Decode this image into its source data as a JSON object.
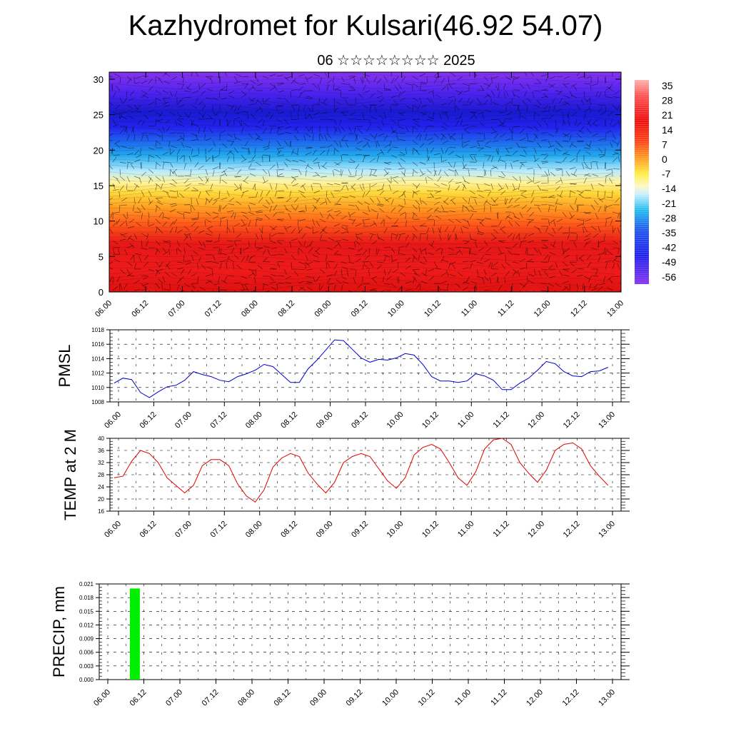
{
  "header": {
    "title": "Kazhydromet for Kulsari(46.92 54.07)",
    "subtitle": "06 ☆☆☆☆☆☆☆☆ 2025"
  },
  "colors": {
    "pmsl_line": "#0000cc",
    "temp_line": "#dd0000",
    "precip_bar": "#00ee00",
    "colorbar_top": "#ffb0b0",
    "colorbar_mid_red": "#ee0000",
    "colorbar_yellow": "#ffee44",
    "colorbar_cyan": "#22bbee",
    "colorbar_bottom": "#8833ee"
  },
  "chart_data": [
    {
      "type": "heatmap",
      "title": "",
      "xlabel": "",
      "ylabel": "",
      "x_tick_labels": [
        "06.00",
        "06.12",
        "07.00",
        "07.12",
        "08.00",
        "08.12",
        "09.00",
        "09.12",
        "10.00",
        "10.12",
        "11.00",
        "11.12",
        "12.00",
        "12.12",
        "13.00"
      ],
      "y_ticks": [
        0,
        5,
        10,
        15,
        20,
        25,
        30
      ],
      "ylim": [
        0,
        31
      ],
      "overlay": "wind barbs / streamlines",
      "colorbar": {
        "labels": [
          "35",
          "28",
          "21",
          "14",
          "7",
          "0",
          "-7",
          "-14",
          "-21",
          "-28",
          "-35",
          "-42",
          "-49",
          "-56"
        ],
        "range": [
          -60,
          38
        ]
      }
    },
    {
      "type": "line",
      "title": "",
      "ylabel": "PMSL",
      "x_tick_labels": [
        "06.00",
        "06.12",
        "07.00",
        "07.12",
        "08.00",
        "08.12",
        "09.00",
        "09.12",
        "10.00",
        "10.12",
        "11.00",
        "11.12",
        "12.00",
        "12.12",
        "13.00"
      ],
      "y_tick_labels": [
        "1008",
        "1010",
        "1012",
        "1014",
        "1016",
        "1018"
      ],
      "ylim": [
        1008,
        1018
      ],
      "x_step_hours": 3,
      "values": [
        1010.6,
        1011.3,
        1011.1,
        1009.3,
        1008.6,
        1009.4,
        1010.1,
        1010.3,
        1011.0,
        1012.2,
        1011.8,
        1011.5,
        1011.0,
        1010.8,
        1011.5,
        1011.9,
        1012.4,
        1013.2,
        1012.9,
        1011.8,
        1010.7,
        1010.7,
        1012.6,
        1013.8,
        1015.2,
        1016.6,
        1016.5,
        1015.3,
        1014.1,
        1013.5,
        1013.9,
        1013.8,
        1014.1,
        1014.7,
        1014.5,
        1013.2,
        1011.5,
        1010.9,
        1010.9,
        1010.7,
        1010.9,
        1011.9,
        1011.6,
        1011.0,
        1009.7,
        1009.7,
        1010.6,
        1011.3,
        1012.4,
        1013.6,
        1013.3,
        1012.2,
        1011.6,
        1011.5,
        1012.2,
        1012.3,
        1012.8
      ]
    },
    {
      "type": "line",
      "title": "",
      "ylabel": "TEMP at 2 M",
      "x_tick_labels": [
        "06.00",
        "06.12",
        "07.00",
        "07.12",
        "08.00",
        "08.12",
        "09.00",
        "09.12",
        "10.00",
        "10.12",
        "11.00",
        "11.12",
        "12.00",
        "12.12",
        "13.00"
      ],
      "y_tick_labels": [
        "16",
        "20",
        "24",
        "28",
        "32",
        "36",
        "40"
      ],
      "ylim": [
        16,
        40
      ],
      "x_step_hours": 3,
      "values": [
        27.0,
        27.5,
        32.5,
        36.0,
        35.0,
        32.0,
        27.0,
        24.5,
        22.0,
        24.5,
        31.0,
        33.0,
        33.0,
        31.0,
        25.0,
        21.0,
        19.0,
        23.0,
        30.5,
        33.5,
        35.0,
        34.0,
        28.5,
        25.0,
        22.0,
        25.5,
        32.0,
        34.0,
        35.0,
        34.0,
        30.0,
        26.0,
        23.5,
        27.0,
        34.5,
        37.0,
        38.0,
        36.5,
        32.0,
        27.0,
        24.5,
        29.0,
        36.5,
        39.5,
        40.0,
        38.0,
        32.0,
        28.5,
        25.5,
        29.5,
        36.0,
        38.0,
        38.5,
        36.5,
        31.0,
        27.5,
        24.5
      ]
    },
    {
      "type": "bar",
      "title": "",
      "ylabel": "PRECIP, mm",
      "x_tick_labels": [
        "06.00",
        "06.12",
        "07.00",
        "07.12",
        "08.00",
        "08.12",
        "09.00",
        "09.12",
        "10.00",
        "10.12",
        "11.00",
        "11.12",
        "12.00",
        "12.12",
        "13.00"
      ],
      "y_tick_labels": [
        "0.000",
        "0.003",
        "0.006",
        "0.009",
        "0.012",
        "0.015",
        "0.018",
        "0.021"
      ],
      "ylim": [
        0,
        0.021
      ],
      "bars": [
        {
          "x_hours": 14,
          "value": 0.02
        }
      ]
    }
  ]
}
